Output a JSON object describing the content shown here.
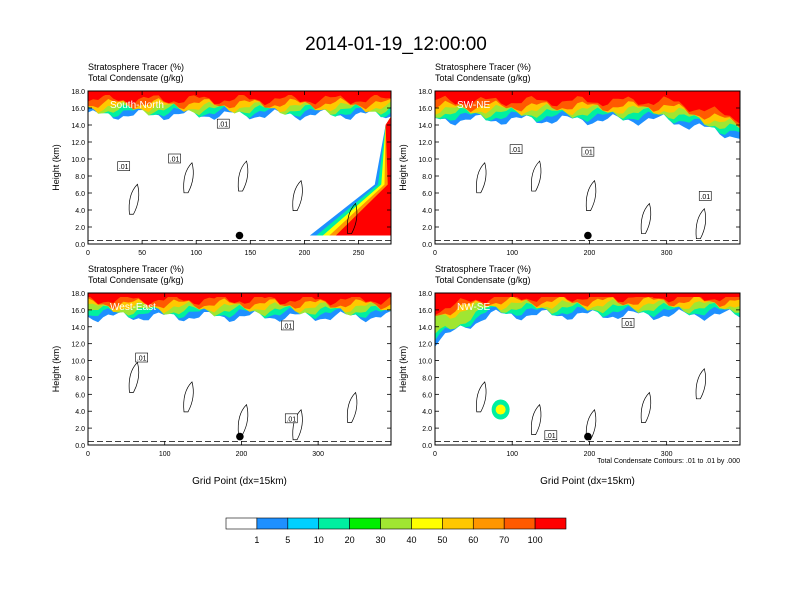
{
  "title": "2014-01-19_12:00:00",
  "field_labels": [
    "Stratosphere Tracer   (%)",
    "Total Condensate   (g/kg)"
  ],
  "contour_info": "Total Condensate Contours: .01 to .01 by .000",
  "colorbar": {
    "labels": [
      "1",
      "5",
      "10",
      "20",
      "30",
      "40",
      "50",
      "60",
      "70",
      "100"
    ],
    "colors": [
      "#ffffff",
      "#1e90ff",
      "#00d0ff",
      "#00f0a0",
      "#00ee00",
      "#a0e632",
      "#ffff00",
      "#ffc800",
      "#ff9600",
      "#ff5a00",
      "#ff0000"
    ]
  },
  "chart_data": [
    {
      "type": "heatmap",
      "panel_label": "South-North",
      "ylabel": "Height (km)",
      "xlabel": "",
      "xlim": [
        0,
        280
      ],
      "ylim": [
        0,
        18
      ],
      "xticks": [
        "0",
        "50",
        "100",
        "150",
        "200",
        "250"
      ],
      "xtick_values": [
        0,
        50,
        100,
        150,
        200,
        250
      ],
      "yticks": [
        "0.0",
        "2.0",
        "4.0",
        "6.0",
        "8.0",
        "10.0",
        "12.0",
        "14.0",
        "16.0",
        "18.0"
      ],
      "contour_labels": [
        ".01",
        ".01",
        ".01"
      ],
      "contour_label_pos": [
        [
          125,
          14.1
        ],
        [
          33,
          9.1
        ],
        [
          80,
          10
        ]
      ],
      "marker_x": 140,
      "tracer_bands_km": [
        15.2,
        15.5,
        15.8,
        16.1,
        16.5,
        17
      ],
      "tropopause_dip": {
        "start_x": 205,
        "end_x": 285,
        "min_km": 1.0
      }
    },
    {
      "type": "heatmap",
      "panel_label": "SW-NE",
      "ylabel": "Height (km)",
      "xlabel": "",
      "xlim": [
        0,
        395
      ],
      "ylim": [
        0,
        18
      ],
      "xticks": [
        "0",
        "100",
        "200",
        "300"
      ],
      "xtick_values": [
        0,
        100,
        200,
        300
      ],
      "yticks": [
        "0.0",
        "2.0",
        "4.0",
        "6.0",
        "8.0",
        "10.0",
        "12.0",
        "14.0",
        "16.0",
        "18.0"
      ],
      "contour_labels": [
        ".01",
        ".01",
        ".01"
      ],
      "contour_label_pos": [
        [
          105,
          11.1
        ],
        [
          198,
          10.8
        ],
        [
          350,
          5.6
        ]
      ],
      "marker_x": 198,
      "tracer_bands_km": [
        14.6,
        15.0,
        15.4,
        15.8,
        16.2,
        16.8
      ]
    },
    {
      "type": "heatmap",
      "panel_label": "West-East",
      "ylabel": "Height (km)",
      "xlabel": "Grid Point (dx=15km)",
      "xlim": [
        0,
        395
      ],
      "ylim": [
        0,
        18
      ],
      "xticks": [
        "0",
        "100",
        "200",
        "300"
      ],
      "xtick_values": [
        0,
        100,
        200,
        300
      ],
      "yticks": [
        "0.0",
        "2.0",
        "4.0",
        "6.0",
        "8.0",
        "10.0",
        "12.0",
        "14.0",
        "16.0",
        "18.0"
      ],
      "contour_labels": [
        ".01",
        ".01",
        ".01"
      ],
      "contour_label_pos": [
        [
          70,
          10.3
        ],
        [
          260,
          14.1
        ],
        [
          265,
          3.1
        ]
      ],
      "marker_x": 198,
      "tracer_bands_km": [
        15.2,
        15.6,
        15.9,
        16.3,
        16.7,
        17.2
      ]
    },
    {
      "type": "heatmap",
      "panel_label": "NW-SE",
      "ylabel": "Height (km)",
      "xlabel": "Grid Point (dx=15km)",
      "xlim": [
        0,
        395
      ],
      "ylim": [
        0,
        18
      ],
      "xticks": [
        "0",
        "100",
        "200",
        "300"
      ],
      "xtick_values": [
        0,
        100,
        200,
        300
      ],
      "yticks": [
        "0.0",
        "2.0",
        "4.0",
        "6.0",
        "8.0",
        "10.0",
        "12.0",
        "14.0",
        "16.0",
        "18.0"
      ],
      "contour_labels": [
        ".01",
        ".01"
      ],
      "contour_label_pos": [
        [
          250,
          14.4
        ],
        [
          150,
          1.1
        ]
      ],
      "marker_x": 198,
      "tracer_bands_km": [
        15.4,
        15.8,
        16.2,
        16.6,
        17.0,
        17.5
      ]
    }
  ]
}
